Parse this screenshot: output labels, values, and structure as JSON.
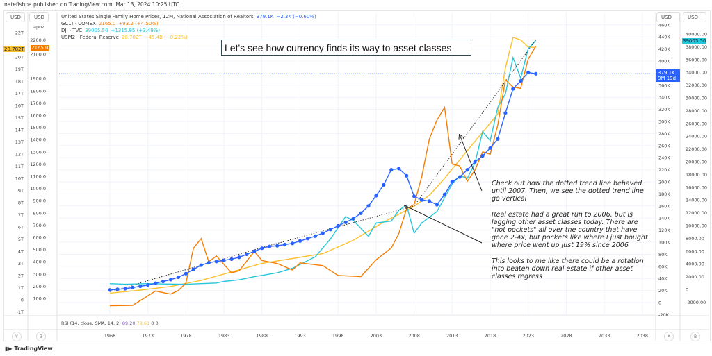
{
  "header": {
    "published": "natefishpa published on TradingView.com, Mar 13, 2024 10:25 UTC"
  },
  "axes_units": {
    "left1": "USD",
    "left2": "USD",
    "left2_sub": "apoz",
    "right_a": "USD",
    "right_b": "USD"
  },
  "legend": [
    {
      "name": "United States Single Family Home Prices, 12M, National Association of Realtors",
      "value": "379.1K",
      "change": "−2.3K (−0.60%)",
      "color": "#2962ff"
    },
    {
      "name": "GC1! · COMEX",
      "value": "2165.0",
      "change": "+93.2 (+4.50%)",
      "color": "#f57c00"
    },
    {
      "name": "DJI · TVC",
      "value": "39005.50",
      "change": "+1315.95 (+3.49%)",
      "color": "#26c6da"
    },
    {
      "name": "USM2 · Federal Reserve",
      "value": "20.782T",
      "change": "−45.4B (−0.22%)",
      "color": "#fbc02d"
    }
  ],
  "badges": {
    "m2": "20.782T",
    "gold": "2165.0",
    "home": "379.1K",
    "home_countdown": "9M 19d",
    "dji": "39005.50"
  },
  "callout": "Let's see how currency finds its way to asset classes",
  "note": [
    "Check out how the dotted trend line behaved until 2007.  Then, we see the dotted trend line go vertical",
    "Real estate had a great run to 2006, but is lagging other asset classes today. There are \"hot pockets\" all over the country that have gone 2-4x, but pockets like where I just bought where price went up just 19% since 2006",
    "This looks to me like there could be a rotation into beaten down real estate if other asset classes regress"
  ],
  "rsi": {
    "label": "RSI (14, close, SMA, 14, 2)",
    "v1": "89.20",
    "v2": "78.61",
    "v3": "0",
    "v4": "0"
  },
  "footer": {
    "y": "Y",
    "z": "Z",
    "a": "A",
    "b": "B",
    "logo": "TradingView"
  },
  "chart_data": {
    "type": "line",
    "xlabel": "",
    "xticks": [
      "1968",
      "1973",
      "1978",
      "1983",
      "1988",
      "1993",
      "1998",
      "2003",
      "2008",
      "2013",
      "2018",
      "2023",
      "2028",
      "2033",
      "2038"
    ],
    "left1_ticks": [
      "-1T",
      "0",
      "1T",
      "2T",
      "3T",
      "4T",
      "5T",
      "6T",
      "7T",
      "8T",
      "9T",
      "10T",
      "11T",
      "12T",
      "13T",
      "14T",
      "15T",
      "16T",
      "17T",
      "18T",
      "19T",
      "20T",
      "22T"
    ],
    "left2_ticks": [
      "100.0",
      "200.0",
      "300.0",
      "400.0",
      "500.0",
      "600.0",
      "700.0",
      "800.0",
      "900.0",
      "1000.0",
      "1100.0",
      "1200.0",
      "1300.0",
      "1400.0",
      "1500.0",
      "1600.0",
      "1700.0",
      "1800.0",
      "1900.0",
      "2100.0",
      "2200.0"
    ],
    "right_a_ticks": [
      "-20K",
      "0",
      "20K",
      "40K",
      "60K",
      "80K",
      "100K",
      "120K",
      "140K",
      "160K",
      "180K",
      "200K",
      "220K",
      "240K",
      "260K",
      "280K",
      "300K",
      "320K",
      "340K",
      "360K",
      "400K",
      "420K",
      "440K",
      "460K"
    ],
    "right_b_ticks": [
      "-2000.00",
      "0",
      "2000.00",
      "4000.00",
      "6000.00",
      "8000.00",
      "10000.00",
      "12000.00",
      "14000.00",
      "16000.00",
      "18000.00",
      "20000.00",
      "22000.00",
      "24000.00",
      "26000.00",
      "28000.00",
      "30000.00",
      "32000.00",
      "34000.00",
      "36000.00",
      "38000.00",
      "40000.00"
    ],
    "series": [
      {
        "name": "Home Prices (K USD)",
        "axis": "right_a",
        "color": "#2962ff",
        "markers": true,
        "x": [
          1968,
          1969,
          1970,
          1971,
          1972,
          1973,
          1974,
          1975,
          1976,
          1977,
          1978,
          1979,
          1980,
          1981,
          1982,
          1983,
          1984,
          1985,
          1986,
          1987,
          1988,
          1989,
          1990,
          1991,
          1992,
          1993,
          1994,
          1995,
          1996,
          1997,
          1998,
          1999,
          2000,
          2001,
          2002,
          2003,
          2004,
          2005,
          2006,
          2007,
          2008,
          2009,
          2010,
          2011,
          2012,
          2013,
          2014,
          2015,
          2016,
          2017,
          2018,
          2019,
          2020,
          2021,
          2022,
          2023,
          2024
        ],
        "y": [
          21,
          22,
          23,
          25,
          27,
          29,
          32,
          35,
          38,
          42,
          48,
          55,
          62,
          66,
          68,
          70,
          72,
          75,
          80,
          85,
          90,
          93,
          94,
          96,
          98,
          102,
          106,
          110,
          115,
          121,
          127,
          133,
          139,
          148,
          160,
          177,
          195,
          220,
          222,
          210,
          176,
          170,
          168,
          162,
          179,
          200,
          208,
          220,
          233,
          243,
          256,
          271,
          314,
          354,
          367,
          381,
          379
        ]
      },
      {
        "name": "Gold GC1! (USD)",
        "axis": "left2",
        "color": "#f57c00",
        "x": [
          1968,
          1971,
          1974,
          1976,
          1977,
          1978,
          1979,
          1980,
          1981,
          1982,
          1984,
          1985,
          1987,
          1988,
          1990,
          1992,
          1993,
          1996,
          1998,
          2001,
          2002,
          2003,
          2005,
          2006,
          2007,
          2008,
          2009,
          2010,
          2011,
          2012,
          2013,
          2014,
          2015,
          2016,
          2017,
          2018,
          2019,
          2020,
          2021,
          2022,
          2023,
          2024
        ],
        "y": [
          40,
          43,
          160,
          135,
          165,
          226,
          512,
          590,
          400,
          448,
          309,
          327,
          484,
          410,
          386,
          333,
          391,
          369,
          288,
          279,
          347,
          416,
          513,
          632,
          834,
          869,
          1095,
          1405,
          1560,
          1664,
          1200,
          1184,
          1060,
          1150,
          1300,
          1280,
          1520,
          1890,
          1830,
          1820,
          2060,
          2165
        ]
      },
      {
        "name": "DJI (USD)",
        "axis": "right_b",
        "color": "#26c6da",
        "x": [
          1968,
          1970,
          1973,
          1975,
          1978,
          1980,
          1982,
          1983,
          1985,
          1987,
          1988,
          1990,
          1992,
          1995,
          1997,
          1999,
          2000,
          2002,
          2003,
          2005,
          2006,
          2007,
          2008,
          2009,
          2011,
          2013,
          2014,
          2015,
          2016,
          2017,
          2018,
          2019,
          2020,
          2021,
          2022,
          2023,
          2024
        ],
        "y": [
          900,
          800,
          900,
          850,
          800,
          900,
          1000,
          1250,
          1500,
          2000,
          2200,
          2600,
          3300,
          5100,
          7900,
          11400,
          10800,
          8300,
          10400,
          10700,
          12400,
          13200,
          8800,
          10400,
          12200,
          16500,
          17800,
          17400,
          19800,
          24700,
          23300,
          28500,
          30600,
          36300,
          33100,
          37700,
          39005
        ]
      },
      {
        "name": "M2 (USD T)",
        "axis": "left1",
        "color": "#fbc02d",
        "x": [
          1968,
          1972,
          1976,
          1980,
          1984,
          1988,
          1992,
          1996,
          2000,
          2004,
          2008,
          2010,
          2012,
          2015,
          2017,
          2019,
          2020,
          2021,
          2022,
          2023,
          2024
        ],
        "y": [
          0.55,
          0.8,
          1.1,
          1.6,
          2.3,
          3.0,
          3.4,
          3.8,
          4.9,
          6.4,
          7.7,
          8.6,
          10.0,
          12.3,
          13.8,
          15.3,
          19.1,
          21.6,
          21.4,
          20.8,
          20.78
        ]
      },
      {
        "name": "Trend line",
        "axis": "right_a",
        "color": "#333",
        "dotted": true,
        "x": [
          1968,
          1988,
          2008,
          2024
        ],
        "y": [
          18,
          91,
          160,
          435
        ]
      }
    ],
    "last_price_line": {
      "axis": "right_a",
      "value": 379.1
    }
  }
}
